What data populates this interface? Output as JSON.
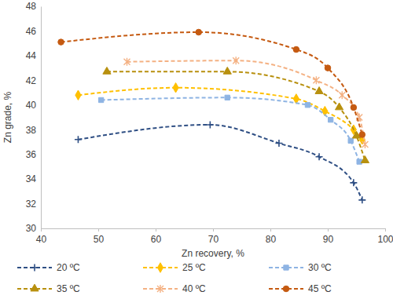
{
  "chart_data": {
    "type": "line",
    "x_label": "Zn recovery, %",
    "y_label": "Zn grade, %",
    "xlim": [
      40,
      100
    ],
    "xticks": [
      40,
      50,
      60,
      70,
      80,
      90,
      100
    ],
    "ylim": [
      30,
      48
    ],
    "yticks": [
      30,
      32,
      34,
      36,
      38,
      40,
      42,
      44,
      46,
      48
    ],
    "grid": false,
    "legend": "bottom",
    "line_style": "dashed",
    "series": [
      {
        "name": "20 ºC",
        "color": "#2f4f84",
        "marker": "plus",
        "x": [
          46.5,
          69.5,
          81.5,
          88.5,
          94.5,
          96.0
        ],
        "values": [
          37.2,
          38.4,
          36.9,
          35.8,
          33.7,
          32.3
        ]
      },
      {
        "name": "25 ºC",
        "color": "#ffc000",
        "marker": "diamond",
        "x": [
          46.5,
          63.5,
          84.5,
          89.5,
          94.5,
          96.0
        ],
        "values": [
          40.8,
          41.4,
          40.5,
          39.5,
          38.0,
          37.2
        ]
      },
      {
        "name": "30 ºC",
        "color": "#8eb4e3",
        "marker": "square",
        "x": [
          50.5,
          72.5,
          86.5,
          90.5,
          94.0,
          95.5
        ],
        "values": [
          40.4,
          40.6,
          40.0,
          38.8,
          37.1,
          35.4
        ]
      },
      {
        "name": "35 ºC",
        "color": "#b8900e",
        "marker": "triangle",
        "x": [
          51.5,
          72.5,
          88.5,
          92.0,
          95.0,
          96.5
        ],
        "values": [
          42.7,
          42.7,
          41.1,
          39.8,
          37.5,
          35.5
        ]
      },
      {
        "name": "40 ºC",
        "color": "#f4b183",
        "marker": "asterisk",
        "x": [
          55.0,
          74.0,
          88.0,
          92.5,
          95.5,
          96.5
        ],
        "values": [
          43.5,
          43.6,
          42.0,
          40.8,
          39.0,
          36.8
        ]
      },
      {
        "name": "45 ºC",
        "color": "#c55a11",
        "marker": "circle",
        "x": [
          43.5,
          67.5,
          84.5,
          90.0,
          94.5,
          96.0
        ],
        "values": [
          45.1,
          45.9,
          44.5,
          43.0,
          39.8,
          37.6
        ]
      }
    ]
  }
}
